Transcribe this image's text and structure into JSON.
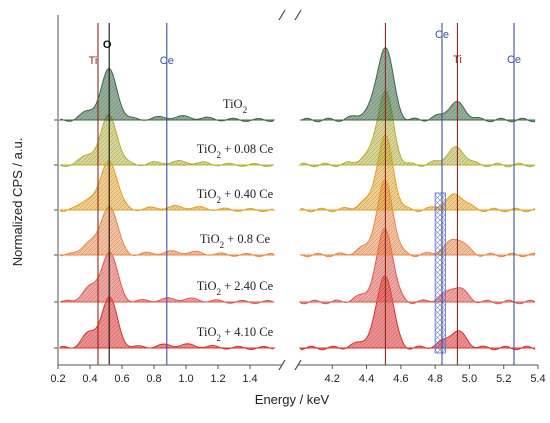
{
  "chart_data": {
    "type": "area",
    "ylabel": "Normalized CPS / a.u.",
    "xlabel": "Energy / keV",
    "xlim_left": [
      0.2,
      1.6
    ],
    "xlim_right": [
      4.0,
      5.4
    ],
    "x_ticks_left": [
      "0.2",
      "0.4",
      "0.6",
      "0.8",
      "1.0",
      "1.2",
      "1.4"
    ],
    "x_ticks_right": [
      "4.2",
      "4.4",
      "4.6",
      "4.8",
      "5.0",
      "5.2",
      "5.4"
    ],
    "axis_break": true,
    "stacked_offset": true,
    "series": [
      {
        "name": "TiO2",
        "label_main": "TiO",
        "label_sub": "2",
        "label_rest": "",
        "color": "#3d6a45",
        "low": {
          "o": 1.0,
          "ti": 0.35
        },
        "high": {
          "k": 1.0,
          "tik": 0.22
        }
      },
      {
        "name": "TiO2 + 0.08 Ce",
        "label_main": "TiO",
        "label_sub": "2",
        "label_rest": "+ 0.08 Ce",
        "color": "#b8b23a",
        "low": {
          "o": 1.0,
          "ti": 0.45
        },
        "high": {
          "k": 1.0,
          "tik": 0.22
        }
      },
      {
        "name": "TiO2 + 0.40 Ce",
        "label_main": "TiO",
        "label_sub": "2",
        "label_rest": "+ 0.40 Ce",
        "color": "#e6a428",
        "low": {
          "o": 1.0,
          "ti": 0.5
        },
        "high": {
          "k": 1.0,
          "tik": 0.2
        }
      },
      {
        "name": "TiO2 + 0.8 Ce",
        "label_main": "TiO",
        "label_sub": "2",
        "label_rest": "+ 0.8 Ce",
        "color": "#ec8a48",
        "low": {
          "o": 1.0,
          "ti": 0.55
        },
        "high": {
          "k": 1.0,
          "tik": 0.22
        }
      },
      {
        "name": "TiO2 + 2.40 Ce",
        "label_main": "TiO",
        "label_sub": "2",
        "label_rest": "+ 2.40 Ce",
        "color": "#e55a50",
        "low": {
          "o": 1.0,
          "ti": 0.6
        },
        "high": {
          "k": 1.0,
          "tik": 0.2
        }
      },
      {
        "name": "TiO2 + 4.10 Ce",
        "label_main": "TiO",
        "label_sub": "2",
        "label_rest": "+ 4.10 Ce",
        "color": "#e0302e",
        "low": {
          "o": 1.0,
          "ti": 0.6
        },
        "high": {
          "k": 1.0,
          "tik": 0.22
        }
      }
    ],
    "markers": [
      {
        "label": "Ti",
        "x": 0.45,
        "panel": "left",
        "color": "#8b2a22"
      },
      {
        "label": "O",
        "x": 0.52,
        "panel": "left",
        "color": "#111111"
      },
      {
        "label": "Ce",
        "x": 0.88,
        "panel": "left",
        "color": "#3b4fa0"
      },
      {
        "label": "",
        "x": 4.51,
        "panel": "right",
        "color": "#8b2a22"
      },
      {
        "label": "Ce",
        "x": 4.84,
        "panel": "right",
        "color": "#3b4fa0"
      },
      {
        "label": "Ti",
        "x": 4.93,
        "panel": "right",
        "color": "#8b2a22"
      },
      {
        "label": "Ce",
        "x": 5.26,
        "panel": "right",
        "color": "#3b4fa0"
      }
    ],
    "highlight_band": {
      "x_from": 4.8,
      "x_to": 4.86,
      "color": "#5a6fc0"
    }
  }
}
